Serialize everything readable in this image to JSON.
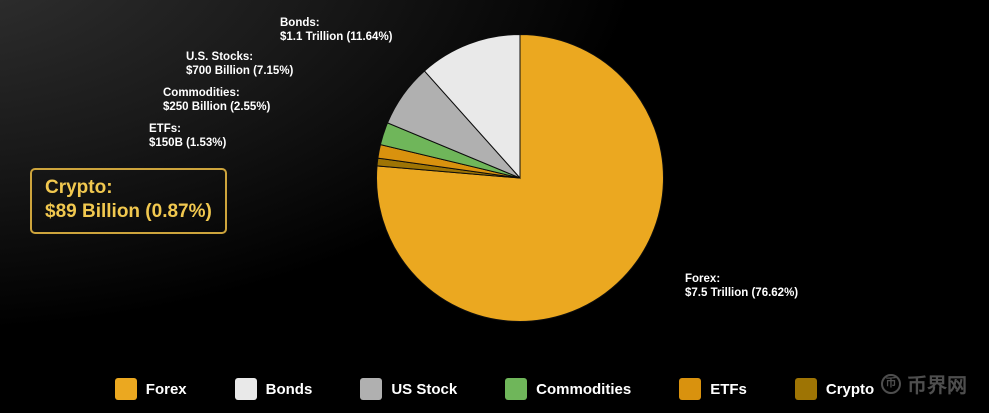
{
  "chart_data": {
    "type": "pie",
    "title": "",
    "legend_position": "bottom",
    "direction": "clockwise",
    "start_angle_deg": 0,
    "draw_order": [
      "forex",
      "crypto",
      "etfs",
      "commodities",
      "us_stock",
      "bonds"
    ],
    "slices": [
      {
        "id": "forex",
        "name": "Forex",
        "value": 76.62,
        "amount": "$7.5 Trillion",
        "color": "#EBA820",
        "legend_label": "Forex",
        "label_title": "Forex:",
        "label_value": "$7.5 Trillion (76.62%)"
      },
      {
        "id": "bonds",
        "name": "Bonds",
        "value": 11.64,
        "amount": "$1.1 Trillion",
        "color": "#E9E9E9",
        "legend_label": "Bonds",
        "label_title": "Bonds:",
        "label_value": "$1.1 Trillion (11.64%)"
      },
      {
        "id": "us_stock",
        "name": "US Stock",
        "value": 7.15,
        "amount": "$700 Billion",
        "color": "#B0B0B0",
        "legend_label": "US Stock",
        "label_title": "U.S. Stocks:",
        "label_value": "$700 Billion (7.15%)"
      },
      {
        "id": "commodities",
        "name": "Commodities",
        "value": 2.55,
        "amount": "$250 Billion",
        "color": "#6FB65A",
        "legend_label": "Commodities",
        "label_title": "Commodities:",
        "label_value": "$250 Billion (2.55%)"
      },
      {
        "id": "etfs",
        "name": "ETFs",
        "value": 1.53,
        "amount": "$150B",
        "color": "#D9920E",
        "legend_label": "ETFs",
        "label_title": "ETFs:",
        "label_value": "$150B (1.53%)"
      },
      {
        "id": "crypto",
        "name": "Crypto",
        "value": 0.87,
        "amount": "$89 Billion",
        "color": "#9E7404",
        "legend_label": "Crypto",
        "label_title": "Crypto:",
        "label_value": "$89 Billion (0.87%)"
      }
    ]
  },
  "colors": {
    "background": "#000000",
    "label_text": "#FFFFFF",
    "callout_border": "#CDA43C",
    "callout_text": "#F1C84F",
    "watermark": "#4E4E4E"
  },
  "watermark": {
    "text": "币界网",
    "icon": "coin-logo-icon",
    "icon_glyph": "币"
  }
}
